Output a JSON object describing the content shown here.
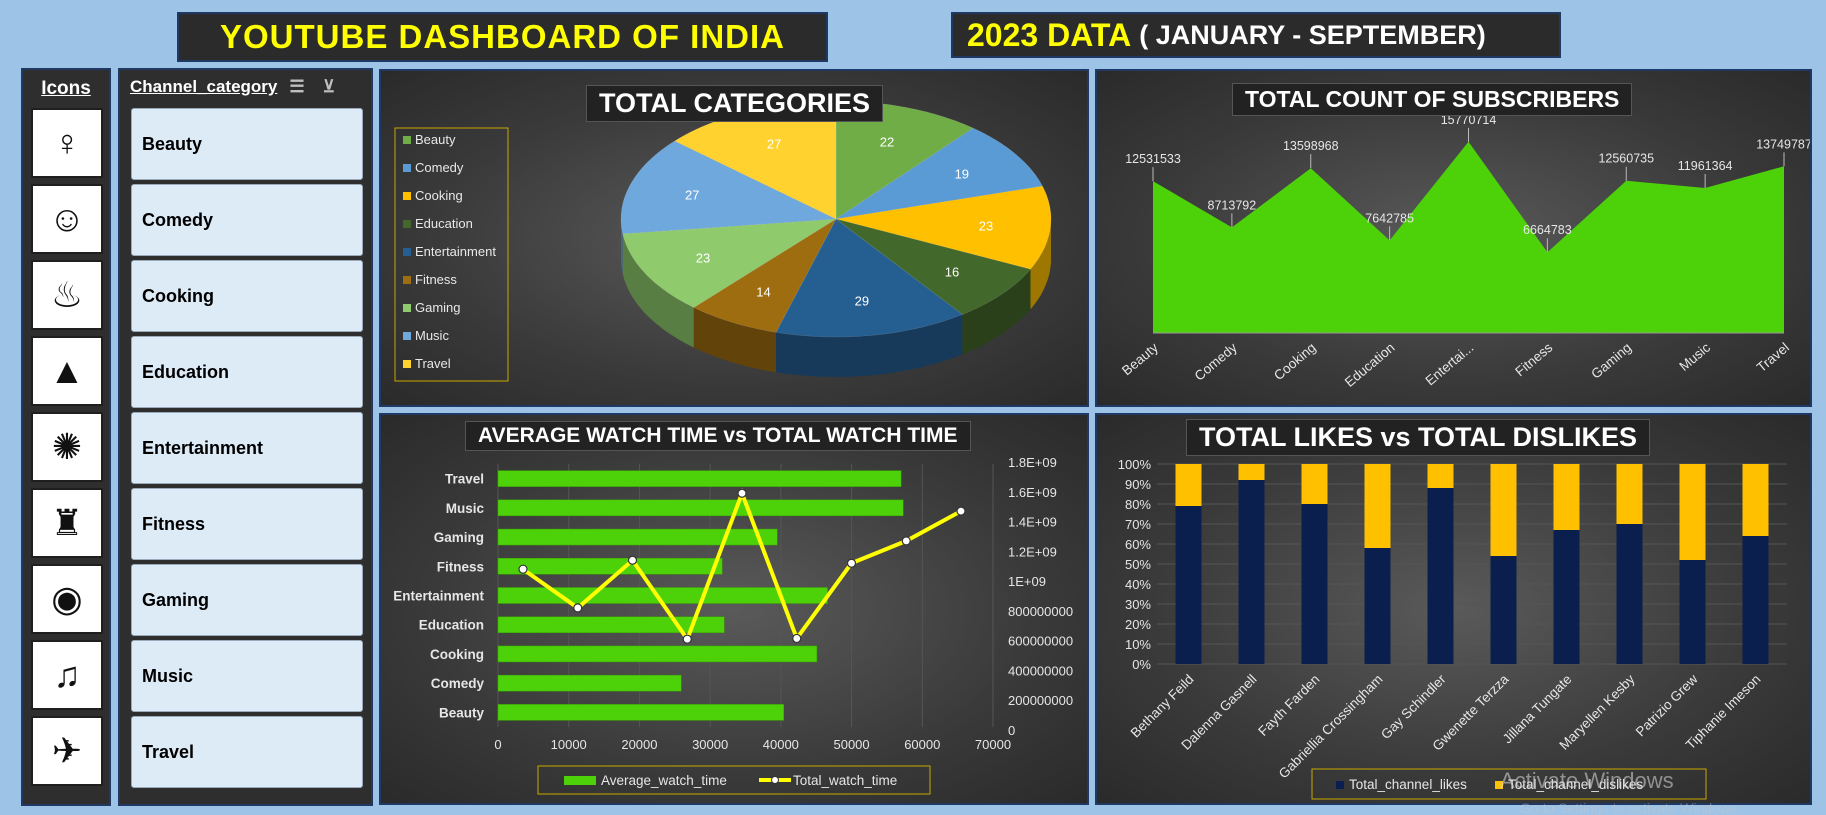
{
  "header": {
    "title": "YOUTUBE DASHBOARD OF INDIA",
    "date_main": "2023 DATA",
    "date_sub": "( JANUARY - SEPTEMBER)"
  },
  "icons_panel": {
    "heading": "Icons",
    "icons": [
      "woman-face-icon",
      "laughing-face-icon",
      "cooking-pan-icon",
      "graduation-cap-icon",
      "crowd-party-icon",
      "weightlifting-icon",
      "game-controller-icon",
      "music-notes-icon",
      "travel-globe-icon"
    ]
  },
  "slicer": {
    "title": "Channel_category",
    "items": [
      "Beauty",
      "Comedy",
      "Cooking",
      "Education",
      "Entertainment",
      "Fitness",
      "Gaming",
      "Music",
      "Travel"
    ]
  },
  "colors": {
    "area_green": "#4dd20a",
    "bar_green": "#4dd20a",
    "line_yellow": "#ffff00",
    "likes_navy": "#0b1f4f",
    "dislikes_gold": "#ffc000",
    "title_yellow": "#ffff00"
  },
  "chart_data": [
    {
      "type": "pie",
      "title": "TOTAL CATEGORIES",
      "legend_position": "left",
      "categories": [
        "Beauty",
        "Comedy",
        "Cooking",
        "Education",
        "Entertainment",
        "Fitness",
        "Gaming",
        "Music",
        "Travel"
      ],
      "values": [
        22,
        19,
        23,
        16,
        29,
        14,
        23,
        27,
        27
      ],
      "colors": [
        "#70ad47",
        "#5b9bd5",
        "#ffc000",
        "#43682b",
        "#255e91",
        "#9e6d10",
        "#8fcb6c",
        "#6fa8dc",
        "#ffd230"
      ]
    },
    {
      "type": "area",
      "title": "TOTAL COUNT OF SUBSCRIBERS",
      "categories": [
        "Beauty",
        "Comedy",
        "Cooking",
        "Education",
        "Entertai...",
        "Fitness",
        "Gaming",
        "Music",
        "Travel"
      ],
      "values": [
        12531533,
        8713792,
        13598968,
        7642785,
        15770714,
        6664783,
        12560735,
        11961364,
        13749787
      ],
      "labels": [
        "12531533",
        "8713792",
        "13598968",
        "7642785",
        "15770714",
        "6664783",
        "12560735",
        "11961364",
        "13749787"
      ]
    },
    {
      "type": "bar",
      "title": "AVERAGE WATCH TIME vs TOTAL WATCH TIME",
      "categories": [
        "Travel",
        "Music",
        "Gaming",
        "Fitness",
        "Entertainment",
        "Education",
        "Cooking",
        "Comedy",
        "Beauty"
      ],
      "series": [
        {
          "name": "Average_watch_time",
          "values": [
            57000,
            57300,
            39500,
            31700,
            46600,
            32000,
            45100,
            25900,
            40400
          ]
        },
        {
          "name": "Total_watch_time",
          "values": [
            1470000000,
            1270000000,
            1120000000,
            615000000,
            1590000000,
            610000000,
            1140000000,
            820000000,
            1080000000
          ]
        }
      ],
      "x_ticks": [
        "0",
        "10000",
        "20000",
        "30000",
        "40000",
        "50000",
        "60000",
        "70000"
      ],
      "xlim": [
        0,
        70000
      ],
      "y2_ticks": [
        "0",
        "200000000",
        "400000000",
        "600000000",
        "800000000",
        "1E+09",
        "1.2E+09",
        "1.4E+09",
        "1.6E+09",
        "1.8E+09"
      ],
      "y2lim": [
        0,
        1800000000
      ],
      "legend_position": "bottom"
    },
    {
      "type": "bar",
      "stacked": "percent",
      "title": "TOTAL LIKES vs TOTAL DISLIKES",
      "categories": [
        "Bethany Feild",
        "Dalenna Gasnell",
        "Fayth Farden",
        "Gabriellia Crossingham",
        "Gay Schindler",
        "Gwenette Terzza",
        "Jillana Tungate",
        "Maryellen Kesby",
        "Patrizio Grew",
        "Tiphanie Imeson"
      ],
      "series": [
        {
          "name": "Total_channel_likes",
          "values": [
            0.79,
            0.92,
            0.8,
            0.58,
            0.88,
            0.54,
            0.67,
            0.7,
            0.52,
            0.64
          ]
        },
        {
          "name": "Total_channel_dislikes",
          "values": [
            0.21,
            0.08,
            0.2,
            0.42,
            0.12,
            0.46,
            0.33,
            0.3,
            0.48,
            0.36
          ]
        }
      ],
      "y_ticks": [
        "0%",
        "10%",
        "20%",
        "30%",
        "40%",
        "50%",
        "60%",
        "70%",
        "80%",
        "90%",
        "100%"
      ],
      "ylim": [
        0,
        1
      ],
      "legend_position": "bottom"
    }
  ],
  "watermark": {
    "line1": "Activate Windows",
    "line2": "Go to Settings to activate Windows."
  }
}
